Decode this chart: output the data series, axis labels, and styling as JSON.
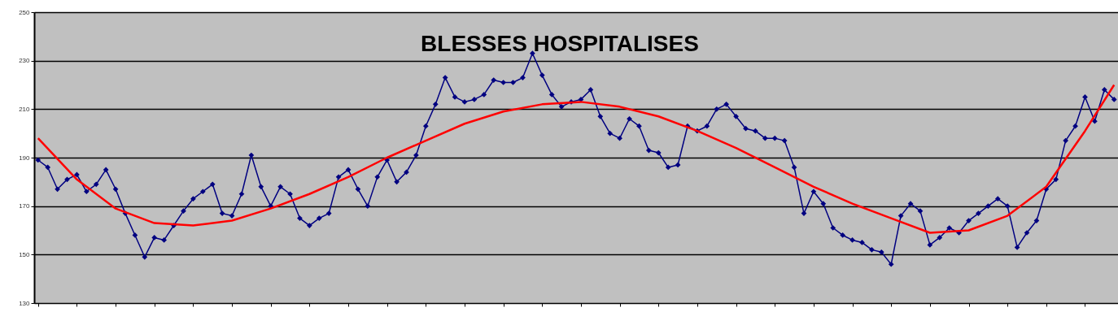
{
  "chart_data": {
    "type": "line",
    "title": "BLESSES HOSPITALISES",
    "categories": [
      null,
      null,
      null,
      null,
      null,
      null,
      null,
      null,
      null,
      null,
      null,
      null,
      null,
      null,
      null,
      null,
      null,
      null,
      null,
      null,
      null,
      null,
      null,
      null,
      null,
      null,
      null,
      null,
      null,
      null,
      null,
      null,
      null,
      null,
      null,
      null,
      null,
      null,
      null,
      null,
      null,
      null,
      null,
      null,
      null,
      null,
      null,
      null,
      null,
      null,
      null,
      null,
      null,
      null,
      null,
      null,
      null,
      null,
      null,
      null,
      null,
      null,
      null,
      null,
      null,
      null,
      null,
      null,
      null,
      null,
      null,
      null,
      null,
      null,
      null,
      null,
      null,
      null,
      null,
      null,
      null,
      null,
      null,
      null,
      null,
      null,
      null,
      null,
      null,
      null,
      null,
      null,
      null,
      null,
      null,
      null,
      null,
      null,
      null,
      null,
      null,
      null,
      null,
      null,
      null,
      null,
      null,
      null,
      null,
      null,
      null,
      null
    ],
    "series": [
      {
        "color": "#000080",
        "marker": "diamond",
        "values": [
          189,
          186,
          177,
          181,
          183,
          176,
          179,
          185,
          177,
          167,
          158,
          149,
          157,
          156,
          162,
          168,
          173,
          176,
          179,
          167,
          166,
          175,
          191,
          178,
          170,
          178,
          175,
          165,
          162,
          165,
          167,
          182,
          185,
          177,
          170,
          182,
          189,
          180,
          184,
          191,
          203,
          212,
          223,
          215,
          213,
          214,
          216,
          222,
          221,
          221,
          223,
          233,
          224,
          216,
          211,
          213,
          214,
          218,
          207,
          200,
          198,
          206,
          203,
          193,
          192,
          186,
          187,
          203,
          201,
          203,
          210,
          212,
          207,
          202,
          201,
          198,
          198,
          197,
          186,
          167,
          176,
          171,
          161,
          158,
          156,
          155,
          152,
          151,
          146,
          166,
          171,
          168,
          154,
          157,
          161,
          159,
          164,
          167,
          170,
          173,
          170,
          153,
          159,
          164,
          177,
          181,
          197,
          203,
          215,
          205,
          218,
          214
        ]
      },
      {
        "type": "line",
        "color": "#ff0000",
        "marker": "none",
        "values": [
          198,
          null,
          null,
          null,
          181,
          null,
          null,
          null,
          169,
          null,
          null,
          null,
          163,
          null,
          null,
          null,
          162,
          null,
          null,
          null,
          164,
          null,
          null,
          null,
          169,
          null,
          null,
          null,
          175,
          null,
          null,
          null,
          182,
          null,
          null,
          null,
          190,
          null,
          null,
          null,
          197,
          null,
          null,
          null,
          204,
          null,
          null,
          null,
          209,
          null,
          null,
          null,
          212,
          null,
          null,
          null,
          213,
          null,
          null,
          null,
          211,
          null,
          null,
          null,
          207,
          null,
          null,
          null,
          201,
          null,
          null,
          null,
          194,
          null,
          null,
          null,
          186,
          null,
          null,
          null,
          178,
          null,
          null,
          null,
          171,
          null,
          null,
          null,
          165,
          null,
          null,
          null,
          159,
          null,
          null,
          null,
          160,
          null,
          null,
          null,
          166,
          null,
          null,
          null,
          178,
          null,
          null,
          null,
          201,
          null,
          null,
          220
        ]
      }
    ],
    "ylim": [
      130,
      250
    ],
    "yticks": [
      130,
      150,
      170,
      190,
      210,
      230,
      250
    ],
    "grid": "y"
  }
}
